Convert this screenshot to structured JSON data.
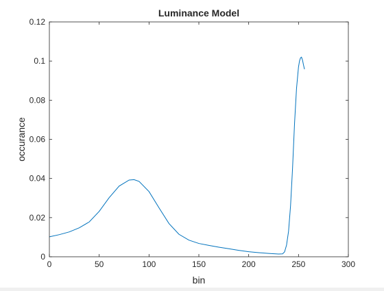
{
  "chart_data": {
    "type": "line",
    "title": "Luminance Model",
    "xlabel": "bin",
    "ylabel": "occurance",
    "xlim": [
      0,
      300
    ],
    "ylim": [
      0,
      0.12
    ],
    "xticks": [
      0,
      50,
      100,
      150,
      200,
      250,
      300
    ],
    "xtick_labels": [
      "0",
      "50",
      "100",
      "150",
      "200",
      "250",
      "300"
    ],
    "yticks": [
      0,
      0.02,
      0.04,
      0.06,
      0.08,
      0.1,
      0.12
    ],
    "ytick_labels": [
      "0",
      "0.02",
      "0.04",
      "0.06",
      "0.08",
      "0.1",
      "0.12"
    ],
    "grid": false,
    "box": true,
    "colors": {
      "line": "#0072BD",
      "axes": "#262626",
      "background": "#ffffff"
    },
    "series": [
      {
        "x": [
          0,
          10,
          20,
          30,
          40,
          50,
          60,
          70,
          80,
          85,
          90,
          100,
          110,
          120,
          130,
          140,
          150,
          160,
          170,
          180,
          190,
          200,
          210,
          220,
          230,
          234,
          236,
          238,
          240,
          242,
          244,
          246,
          248,
          250,
          251,
          252,
          253,
          254,
          255,
          256
        ],
        "y": [
          0.0102,
          0.0113,
          0.0127,
          0.0148,
          0.0178,
          0.0232,
          0.0302,
          0.0361,
          0.0392,
          0.0394,
          0.0385,
          0.0333,
          0.025,
          0.017,
          0.0115,
          0.0085,
          0.0068,
          0.0058,
          0.0049,
          0.0041,
          0.0033,
          0.0026,
          0.0021,
          0.0017,
          0.0014,
          0.0015,
          0.0025,
          0.006,
          0.013,
          0.026,
          0.045,
          0.068,
          0.086,
          0.097,
          0.1,
          0.1016,
          0.102,
          0.1005,
          0.098,
          0.0958
        ]
      }
    ]
  }
}
